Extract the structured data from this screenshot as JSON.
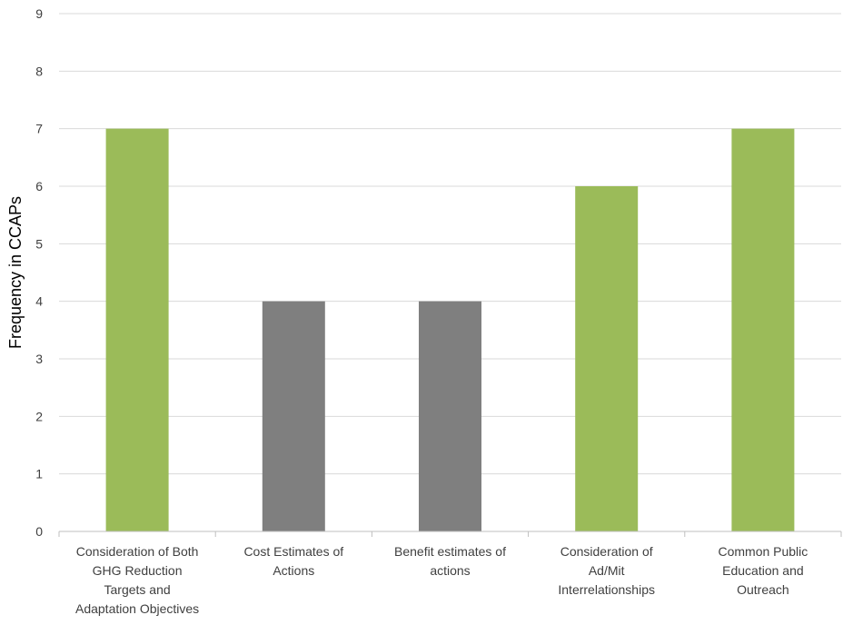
{
  "chart_data": {
    "type": "bar",
    "title": "",
    "xlabel": "",
    "ylabel": "Frequency in CCAPs",
    "categories": [
      [
        "Consideration of Both",
        "GHG Reduction",
        "Targets and",
        "Adaptation Objectives"
      ],
      [
        "Cost Estimates of",
        "Actions"
      ],
      [
        "Benefit estimates of",
        "actions"
      ],
      [
        "Consideration of",
        "Ad/Mit",
        "Interrelationships"
      ],
      [
        "Common Public",
        "Education and",
        "Outreach"
      ]
    ],
    "values": [
      7,
      4,
      4,
      6,
      7
    ],
    "bar_colors": [
      "#9bbb59",
      "#7f7f7f",
      "#7f7f7f",
      "#9bbb59",
      "#9bbb59"
    ],
    "ylim": [
      0,
      9
    ],
    "yticks": [
      0,
      1,
      2,
      3,
      4,
      5,
      6,
      7,
      8,
      9
    ],
    "grid": true,
    "legend": "none"
  }
}
